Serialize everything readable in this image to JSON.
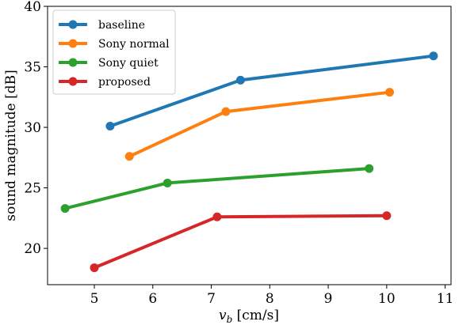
{
  "chart_data": {
    "type": "line",
    "title": "",
    "xlabel_base": "v",
    "xlabel_sub": "b",
    "xlabel_unit": " [cm/s]",
    "ylabel": "sound magnitude [dB]",
    "xlim": [
      4.2,
      11.1
    ],
    "ylim": [
      17,
      40
    ],
    "xticks": [
      5,
      6,
      7,
      8,
      9,
      10,
      11
    ],
    "yticks": [
      20,
      25,
      30,
      35,
      40
    ],
    "grid": false,
    "legend_position": "top-left",
    "series": [
      {
        "name": "baseline",
        "color": "#1f77b4",
        "x": [
          5.27,
          7.5,
          10.8
        ],
        "y": [
          30.1,
          33.9,
          35.9
        ]
      },
      {
        "name": "Sony normal",
        "color": "#ff7f0e",
        "x": [
          5.6,
          7.25,
          10.05
        ],
        "y": [
          27.6,
          31.3,
          32.9
        ]
      },
      {
        "name": "Sony quiet",
        "color": "#2ca02c",
        "x": [
          4.5,
          6.25,
          9.7
        ],
        "y": [
          23.3,
          25.4,
          26.6
        ]
      },
      {
        "name": "proposed",
        "color": "#d62728",
        "x": [
          5.0,
          7.1,
          10.0
        ],
        "y": [
          18.4,
          22.6,
          22.7
        ]
      }
    ]
  }
}
